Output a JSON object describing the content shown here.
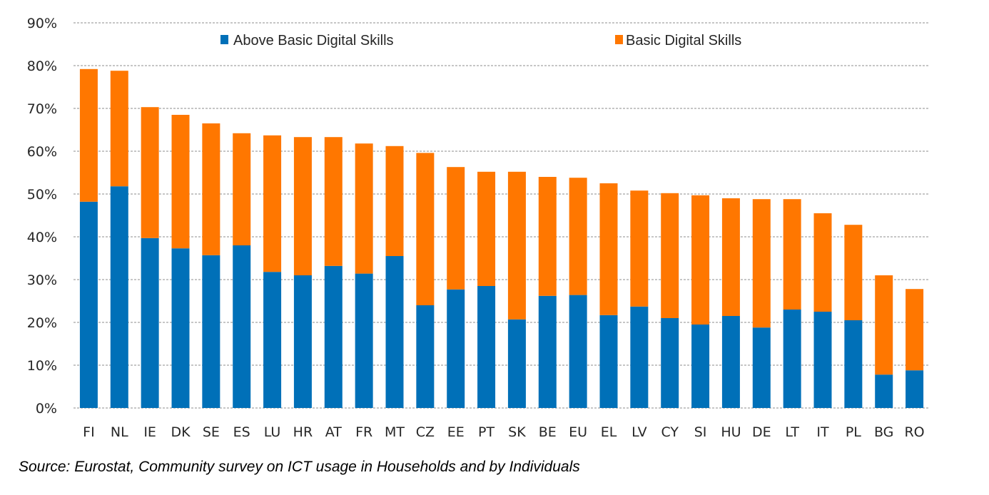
{
  "chart_data": {
    "type": "bar",
    "stacked": true,
    "title": "",
    "xlabel": "",
    "ylabel": "",
    "ylim": [
      0,
      90
    ],
    "y_ticks": [
      0,
      10,
      20,
      30,
      40,
      50,
      60,
      70,
      80,
      90
    ],
    "y_tick_format": "percent",
    "grid": true,
    "legend_position": "top",
    "categories": [
      "FI",
      "NL",
      "IE",
      "DK",
      "SE",
      "ES",
      "LU",
      "HR",
      "AT",
      "FR",
      "MT",
      "CZ",
      "EE",
      "PT",
      "SK",
      "BE",
      "EU",
      "EL",
      "LV",
      "CY",
      "SI",
      "HU",
      "DE",
      "LT",
      "IT",
      "PL",
      "BG",
      "RO"
    ],
    "series": [
      {
        "name": "Above Basic Digital Skills",
        "color": "#0070b8",
        "values": [
          48.2,
          51.8,
          39.7,
          37.3,
          35.7,
          38.0,
          31.8,
          31.0,
          33.2,
          31.4,
          35.5,
          24.0,
          27.7,
          28.5,
          20.7,
          26.2,
          26.4,
          21.7,
          23.7,
          21.0,
          19.5,
          21.5,
          18.8,
          23.0,
          22.5,
          20.5,
          7.8,
          8.8
        ]
      },
      {
        "name": "Basic Digital Skills",
        "color": "#ff7700",
        "values": [
          31.0,
          27.0,
          30.6,
          31.2,
          30.8,
          26.2,
          31.9,
          32.3,
          30.1,
          30.4,
          25.7,
          35.6,
          28.6,
          26.7,
          34.5,
          27.8,
          27.4,
          30.8,
          27.1,
          29.2,
          30.2,
          27.5,
          30.0,
          25.8,
          23.0,
          22.3,
          23.2,
          19.0
        ]
      }
    ]
  },
  "source_note": "Source: Eurostat,  Community survey on ICT usage in Households and by Individuals"
}
